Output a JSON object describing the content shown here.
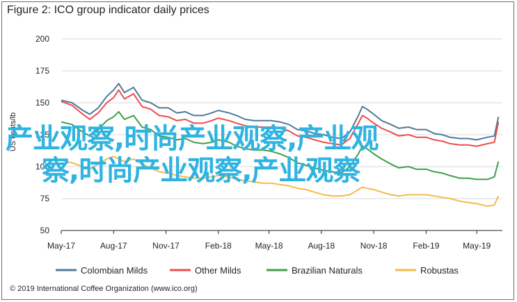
{
  "chart_data": {
    "type": "line",
    "title": "Figure 2: ICO group indicator daily prices",
    "xlabel": "",
    "ylabel": "US cents/lb",
    "ylim": [
      50,
      200
    ],
    "yticks": [
      50,
      75,
      100,
      125,
      150,
      175,
      200
    ],
    "xlim": [
      "2017-05-01",
      "2019-06-15"
    ],
    "xticks": [
      {
        "label": "May-17",
        "date": "2017-05-01"
      },
      {
        "label": "Aug-17",
        "date": "2017-08-01"
      },
      {
        "label": "Nov-17",
        "date": "2017-11-01"
      },
      {
        "label": "Feb-18",
        "date": "2018-02-01"
      },
      {
        "label": "May-18",
        "date": "2018-05-01"
      },
      {
        "label": "Aug-18",
        "date": "2018-08-01"
      },
      {
        "label": "Nov-18",
        "date": "2018-11-01"
      },
      {
        "label": "Feb-19",
        "date": "2019-02-01"
      },
      {
        "label": "May-19",
        "date": "2019-05-01"
      }
    ],
    "grid": true,
    "legend_position": "bottom",
    "series": [
      {
        "name": "Colombian Milds",
        "color": "#4e7a9a",
        "points": [
          [
            "2017-05-01",
            152
          ],
          [
            "2017-05-20",
            150
          ],
          [
            "2017-06-08",
            144
          ],
          [
            "2017-06-20",
            141
          ],
          [
            "2017-07-05",
            146
          ],
          [
            "2017-07-20",
            155
          ],
          [
            "2017-08-01",
            160
          ],
          [
            "2017-08-10",
            165
          ],
          [
            "2017-08-20",
            158
          ],
          [
            "2017-09-05",
            162
          ],
          [
            "2017-09-20",
            152
          ],
          [
            "2017-10-05",
            150
          ],
          [
            "2017-10-20",
            146
          ],
          [
            "2017-11-05",
            146
          ],
          [
            "2017-11-20",
            142
          ],
          [
            "2017-12-05",
            143
          ],
          [
            "2017-12-20",
            140
          ],
          [
            "2018-01-05",
            140
          ],
          [
            "2018-01-20",
            142
          ],
          [
            "2018-02-01",
            144
          ],
          [
            "2018-02-20",
            142
          ],
          [
            "2018-03-05",
            140
          ],
          [
            "2018-03-20",
            137
          ],
          [
            "2018-04-05",
            136
          ],
          [
            "2018-04-20",
            136
          ],
          [
            "2018-05-05",
            136
          ],
          [
            "2018-05-20",
            135
          ],
          [
            "2018-06-05",
            133
          ],
          [
            "2018-06-20",
            129
          ],
          [
            "2018-07-05",
            128
          ],
          [
            "2018-07-20",
            126
          ],
          [
            "2018-08-05",
            125
          ],
          [
            "2018-08-20",
            123
          ],
          [
            "2018-09-05",
            122
          ],
          [
            "2018-09-20",
            127
          ],
          [
            "2018-10-05",
            140
          ],
          [
            "2018-10-12",
            147
          ],
          [
            "2018-10-20",
            145
          ],
          [
            "2018-11-01",
            141
          ],
          [
            "2018-11-15",
            136
          ],
          [
            "2018-12-01",
            133
          ],
          [
            "2018-12-15",
            130
          ],
          [
            "2019-01-01",
            131
          ],
          [
            "2019-01-15",
            129
          ],
          [
            "2019-02-01",
            129
          ],
          [
            "2019-02-15",
            126
          ],
          [
            "2019-03-01",
            125
          ],
          [
            "2019-03-15",
            123
          ],
          [
            "2019-04-01",
            122
          ],
          [
            "2019-04-15",
            122
          ],
          [
            "2019-05-01",
            121
          ],
          [
            "2019-05-20",
            123
          ],
          [
            "2019-06-01",
            124
          ],
          [
            "2019-06-08",
            139
          ]
        ]
      },
      {
        "name": "Other Milds",
        "color": "#ef4b4b",
        "points": [
          [
            "2017-05-01",
            151
          ],
          [
            "2017-05-20",
            148
          ],
          [
            "2017-06-08",
            141
          ],
          [
            "2017-06-20",
            137
          ],
          [
            "2017-07-05",
            142
          ],
          [
            "2017-07-20",
            150
          ],
          [
            "2017-08-01",
            154
          ],
          [
            "2017-08-10",
            160
          ],
          [
            "2017-08-20",
            153
          ],
          [
            "2017-09-05",
            157
          ],
          [
            "2017-09-20",
            147
          ],
          [
            "2017-10-05",
            145
          ],
          [
            "2017-10-20",
            140
          ],
          [
            "2017-11-05",
            139
          ],
          [
            "2017-11-20",
            136
          ],
          [
            "2017-12-05",
            137
          ],
          [
            "2017-12-20",
            134
          ],
          [
            "2018-01-05",
            134
          ],
          [
            "2018-01-20",
            136
          ],
          [
            "2018-02-01",
            138
          ],
          [
            "2018-02-20",
            136
          ],
          [
            "2018-03-05",
            134
          ],
          [
            "2018-03-20",
            132
          ],
          [
            "2018-04-05",
            131
          ],
          [
            "2018-04-20",
            131
          ],
          [
            "2018-05-05",
            131
          ],
          [
            "2018-05-20",
            130
          ],
          [
            "2018-06-05",
            128
          ],
          [
            "2018-06-20",
            124
          ],
          [
            "2018-07-05",
            123
          ],
          [
            "2018-07-20",
            121
          ],
          [
            "2018-08-05",
            119
          ],
          [
            "2018-08-20",
            118
          ],
          [
            "2018-09-05",
            117
          ],
          [
            "2018-09-20",
            122
          ],
          [
            "2018-10-05",
            134
          ],
          [
            "2018-10-12",
            140
          ],
          [
            "2018-10-20",
            138
          ],
          [
            "2018-11-01",
            134
          ],
          [
            "2018-11-15",
            130
          ],
          [
            "2018-12-01",
            127
          ],
          [
            "2018-12-15",
            124
          ],
          [
            "2019-01-01",
            125
          ],
          [
            "2019-01-15",
            123
          ],
          [
            "2019-02-01",
            123
          ],
          [
            "2019-02-15",
            121
          ],
          [
            "2019-03-01",
            120
          ],
          [
            "2019-03-15",
            118
          ],
          [
            "2019-04-01",
            117
          ],
          [
            "2019-04-15",
            117
          ],
          [
            "2019-05-01",
            116
          ],
          [
            "2019-05-20",
            118
          ],
          [
            "2019-06-01",
            119
          ],
          [
            "2019-06-08",
            135
          ]
        ]
      },
      {
        "name": "Brazilian Naturals",
        "color": "#3e9e4c",
        "points": [
          [
            "2017-05-01",
            135
          ],
          [
            "2017-05-20",
            133
          ],
          [
            "2017-06-08",
            127
          ],
          [
            "2017-06-20",
            124
          ],
          [
            "2017-07-05",
            129
          ],
          [
            "2017-07-20",
            136
          ],
          [
            "2017-08-01",
            139
          ],
          [
            "2017-08-10",
            143
          ],
          [
            "2017-08-20",
            137
          ],
          [
            "2017-09-05",
            140
          ],
          [
            "2017-09-20",
            131
          ],
          [
            "2017-10-05",
            129
          ],
          [
            "2017-10-20",
            124
          ],
          [
            "2017-11-05",
            123
          ],
          [
            "2017-11-20",
            121
          ],
          [
            "2017-12-05",
            122
          ],
          [
            "2017-12-20",
            119
          ],
          [
            "2018-01-05",
            118
          ],
          [
            "2018-01-20",
            119
          ],
          [
            "2018-02-01",
            121
          ],
          [
            "2018-02-20",
            119
          ],
          [
            "2018-03-05",
            116
          ],
          [
            "2018-03-20",
            114
          ],
          [
            "2018-04-05",
            113
          ],
          [
            "2018-04-20",
            113
          ],
          [
            "2018-05-05",
            112
          ],
          [
            "2018-05-20",
            110
          ],
          [
            "2018-06-05",
            107
          ],
          [
            "2018-06-20",
            103
          ],
          [
            "2018-07-05",
            101
          ],
          [
            "2018-07-20",
            99
          ],
          [
            "2018-08-05",
            97
          ],
          [
            "2018-08-20",
            96
          ],
          [
            "2018-09-05",
            95
          ],
          [
            "2018-09-20",
            100
          ],
          [
            "2018-10-05",
            110
          ],
          [
            "2018-10-12",
            116
          ],
          [
            "2018-10-20",
            114
          ],
          [
            "2018-11-01",
            110
          ],
          [
            "2018-11-15",
            106
          ],
          [
            "2018-12-01",
            102
          ],
          [
            "2018-12-15",
            99
          ],
          [
            "2019-01-01",
            100
          ],
          [
            "2019-01-15",
            98
          ],
          [
            "2019-02-01",
            98
          ],
          [
            "2019-02-15",
            96
          ],
          [
            "2019-03-01",
            95
          ],
          [
            "2019-03-15",
            93
          ],
          [
            "2019-04-01",
            91
          ],
          [
            "2019-04-15",
            91
          ],
          [
            "2019-05-01",
            90
          ],
          [
            "2019-05-20",
            90
          ],
          [
            "2019-06-01",
            92
          ],
          [
            "2019-06-08",
            104
          ]
        ]
      },
      {
        "name": "Robustas",
        "color": "#f6b94a",
        "points": [
          [
            "2017-05-01",
            105
          ],
          [
            "2017-05-20",
            103
          ],
          [
            "2017-06-08",
            100
          ],
          [
            "2017-06-20",
            98
          ],
          [
            "2017-07-05",
            102
          ],
          [
            "2017-07-20",
            106
          ],
          [
            "2017-08-01",
            108
          ],
          [
            "2017-08-10",
            106
          ],
          [
            "2017-08-20",
            104
          ],
          [
            "2017-09-05",
            106
          ],
          [
            "2017-09-20",
            102
          ],
          [
            "2017-10-05",
            99
          ],
          [
            "2017-10-20",
            96
          ],
          [
            "2017-11-05",
            95
          ],
          [
            "2017-11-20",
            93
          ],
          [
            "2017-12-05",
            92
          ],
          [
            "2017-12-20",
            91
          ],
          [
            "2018-01-05",
            91
          ],
          [
            "2018-01-20",
            92
          ],
          [
            "2018-02-01",
            93
          ],
          [
            "2018-02-20",
            92
          ],
          [
            "2018-03-05",
            90
          ],
          [
            "2018-03-20",
            89
          ],
          [
            "2018-04-05",
            88
          ],
          [
            "2018-04-20",
            87
          ],
          [
            "2018-05-05",
            87
          ],
          [
            "2018-05-20",
            86
          ],
          [
            "2018-06-05",
            85
          ],
          [
            "2018-06-20",
            83
          ],
          [
            "2018-07-05",
            82
          ],
          [
            "2018-07-20",
            80
          ],
          [
            "2018-08-05",
            78
          ],
          [
            "2018-08-20",
            77
          ],
          [
            "2018-09-05",
            77
          ],
          [
            "2018-09-20",
            78
          ],
          [
            "2018-10-05",
            82
          ],
          [
            "2018-10-12",
            84
          ],
          [
            "2018-10-20",
            83
          ],
          [
            "2018-11-01",
            82
          ],
          [
            "2018-11-15",
            80
          ],
          [
            "2018-12-01",
            78
          ],
          [
            "2018-12-15",
            77
          ],
          [
            "2019-01-01",
            78
          ],
          [
            "2019-01-15",
            78
          ],
          [
            "2019-02-01",
            78
          ],
          [
            "2019-02-15",
            77
          ],
          [
            "2019-03-01",
            76
          ],
          [
            "2019-03-15",
            75
          ],
          [
            "2019-04-01",
            73
          ],
          [
            "2019-04-15",
            72
          ],
          [
            "2019-05-01",
            71
          ],
          [
            "2019-05-20",
            69
          ],
          [
            "2019-06-01",
            70
          ],
          [
            "2019-06-08",
            77
          ]
        ]
      }
    ]
  },
  "footer": "© 2019 International Coffee Organization (www.ico.org)",
  "overlay": {
    "line1": "产业观察,时尚产业观察,产业观",
    "line2": "察,时尚产业观察,产业观察"
  }
}
